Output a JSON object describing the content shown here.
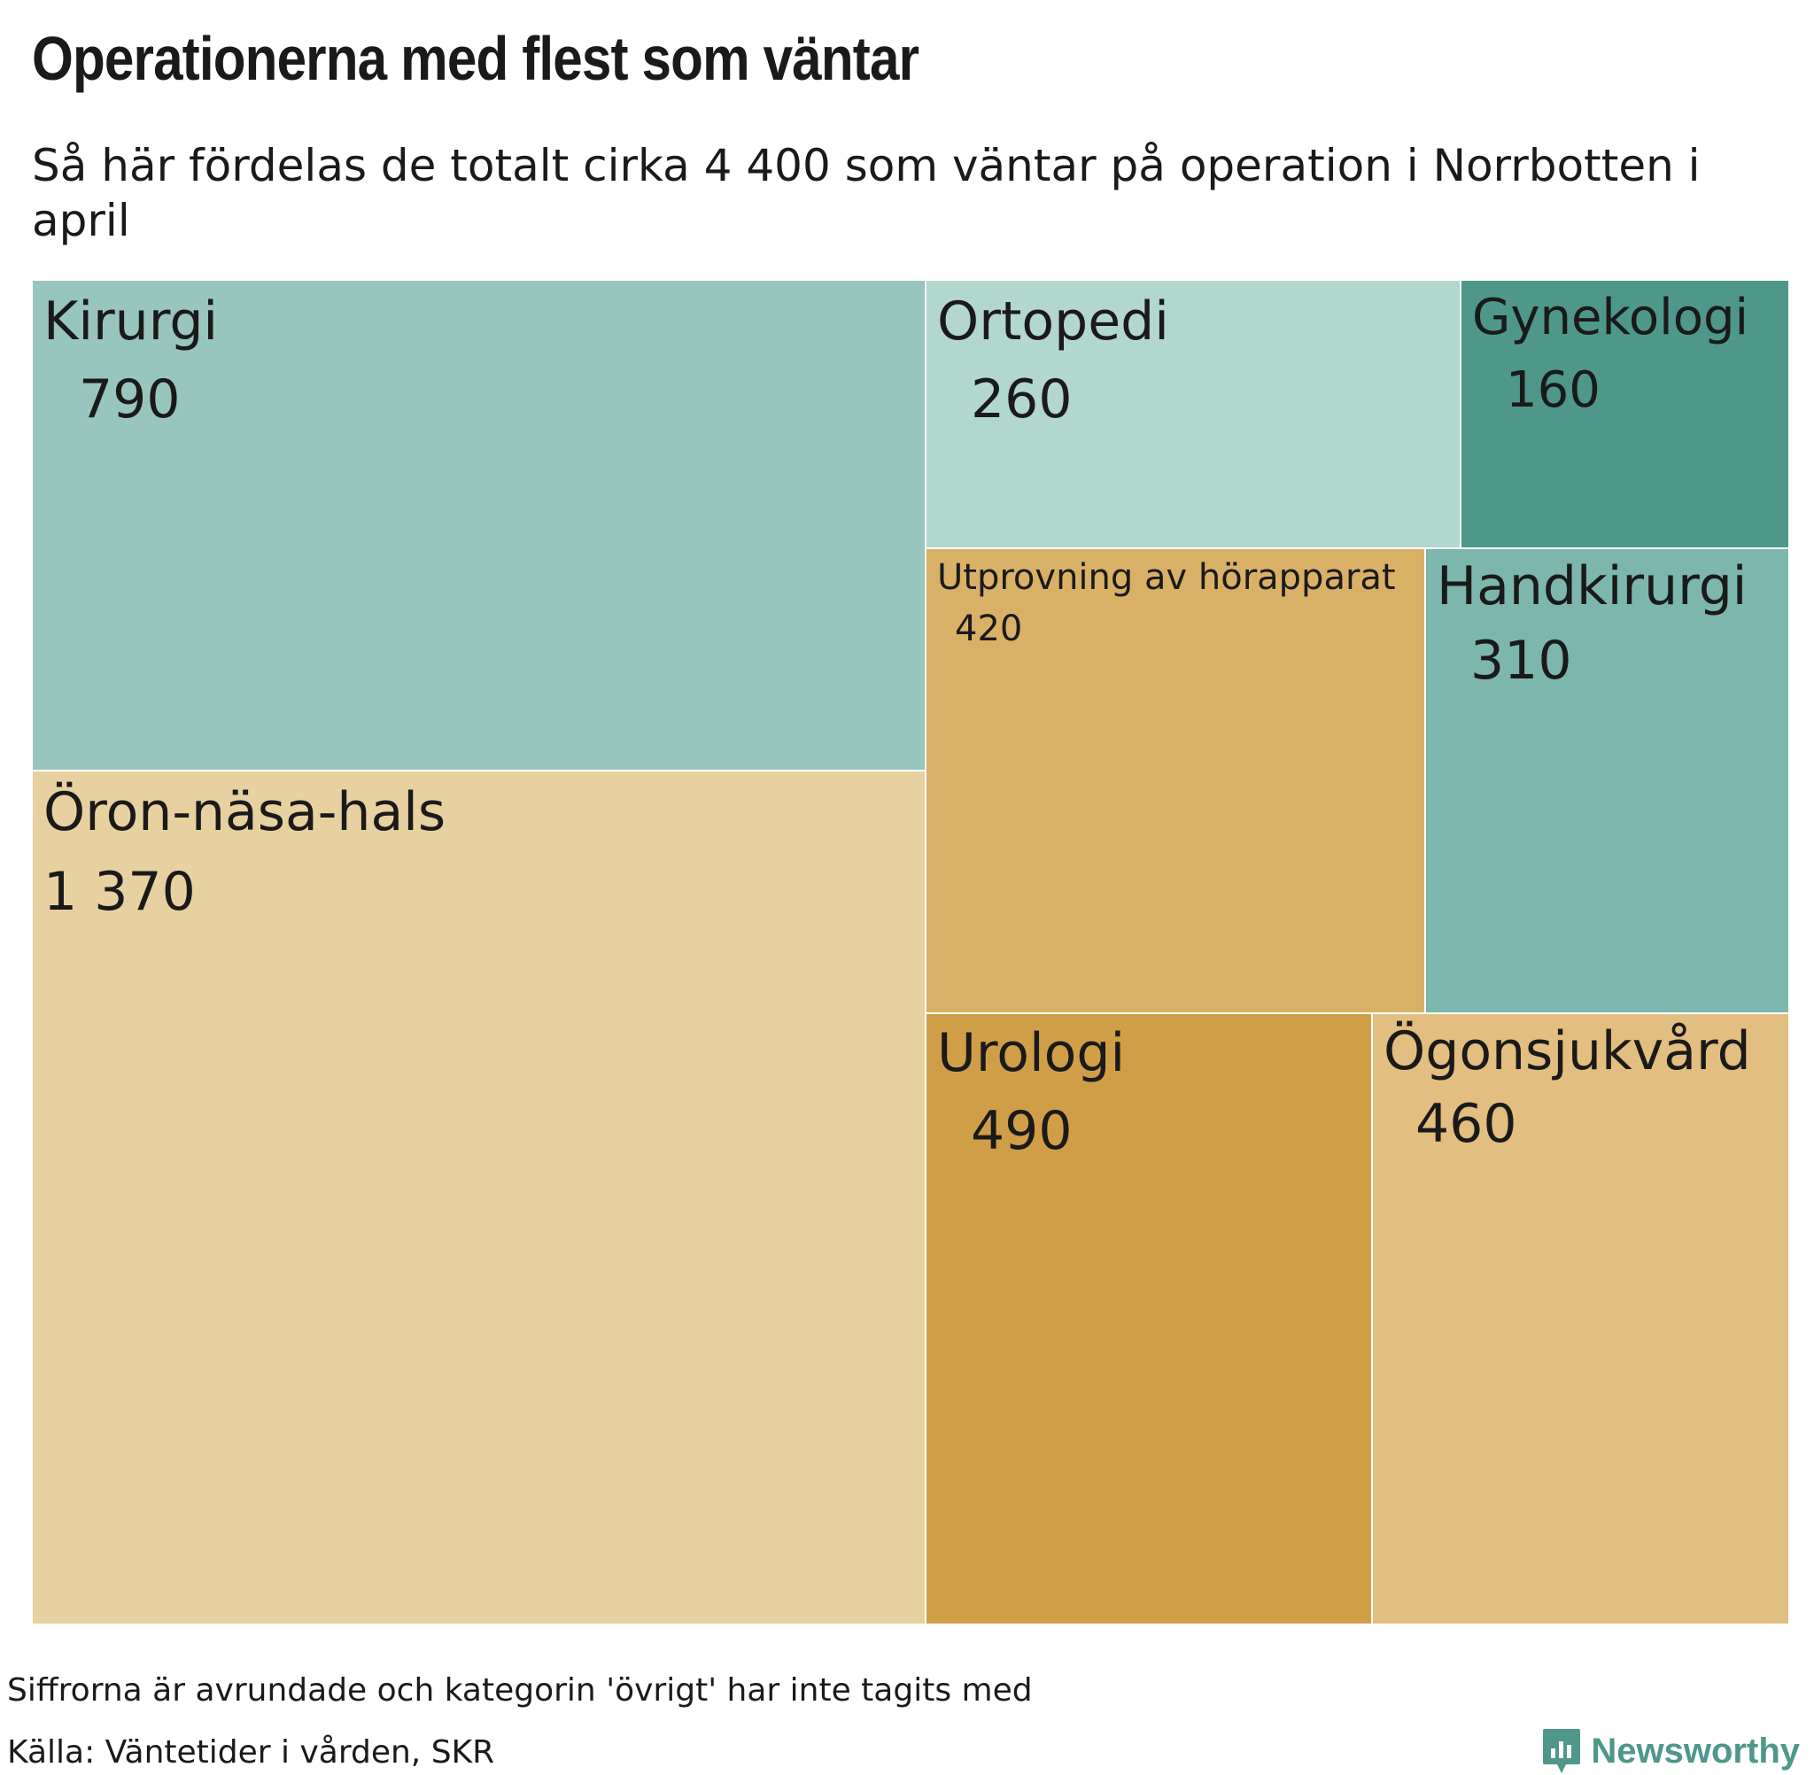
{
  "header": {
    "title": "Operationerna med flest som väntar",
    "subtitle": "Så här fördelas de totalt cirka 4 400 som väntar på operation i Norrbotten i april"
  },
  "chart_data": {
    "type": "treemap",
    "title": "Operationerna med flest som väntar",
    "subtitle": "Så här fördelas de totalt cirka 4 400 som väntar på operation i Norrbotten i april",
    "items": [
      {
        "name": "Kirurgi",
        "value": 790,
        "value_label": "790",
        "color": "#98c5bd"
      },
      {
        "name": "Öron-näsa-hals",
        "value": 1370,
        "value_label": "1 370",
        "color": "#e8d1a1"
      },
      {
        "name": "Ortopedi",
        "value": 260,
        "value_label": "260",
        "color": "#b2d7cf"
      },
      {
        "name": "Gynekologi",
        "value": 160,
        "value_label": "160",
        "color": "#4e978a"
      },
      {
        "name": "Utprovning av hörapparat",
        "value": 420,
        "value_label": "420",
        "color": "#d9b166"
      },
      {
        "name": "Handkirurgi",
        "value": 310,
        "value_label": "310",
        "color": "#7db6ad"
      },
      {
        "name": "Urologi",
        "value": 490,
        "value_label": "490",
        "color": "#d19e48"
      },
      {
        "name": "Ögonsjukvård",
        "value": 460,
        "value_label": "460",
        "color": "#e2bf80"
      }
    ]
  },
  "footer": {
    "note": "Siffrorna är avrundade och kategorin 'övrigt' har inte tagits med",
    "source": "Källa: Väntetider i vården, SKR",
    "brand": "Newsworthy"
  },
  "icons": {
    "brand_logo": "newsworthy-logo-icon"
  }
}
